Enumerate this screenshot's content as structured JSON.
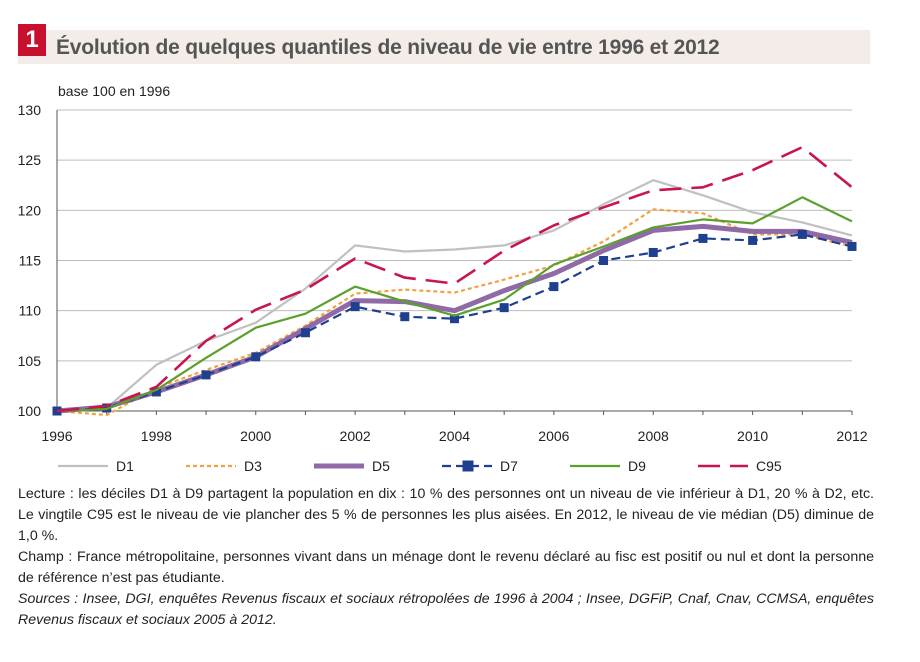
{
  "figure": {
    "number": "1",
    "title": "Évolution de quelques quantiles de niveau de vie entre 1996 et 2012",
    "notes": {
      "lecture": "Lecture : les déciles D1 à D9 partagent la population en dix : 10 % des personnes ont un niveau de vie inférieur à D1, 20 % à D2, etc. Le vingtile C95 est le niveau de vie plancher des 5 % de personnes les plus aisées. En 2012, le niveau de vie médian (D5) diminue de 1,0 %.",
      "champ": "Champ : France métropolitaine, personnes vivant dans un ménage dont le revenu déclaré au fisc est positif ou nul et dont la personne de référence n’est pas étudiante.",
      "sources": "Sources : Insee, DGI, enquêtes Revenus fiscaux et sociaux rétropolées de 1996 à 2004 ; Insee, DGFiP, Cnaf, Cnav, CCMSA, enquêtes Revenus fiscaux et sociaux 2005 à 2012."
    }
  },
  "chart_data": {
    "type": "line",
    "ylabel": "base 100 en 1996",
    "xlabel": "",
    "ylim": [
      100,
      130
    ],
    "yticks": [
      100,
      105,
      110,
      115,
      120,
      125,
      130
    ],
    "xlim": [
      1996,
      2012
    ],
    "xticks": [
      1996,
      1998,
      2000,
      2002,
      2004,
      2006,
      2008,
      2010,
      2012
    ],
    "grid": "horizontal",
    "legend_position": "bottom",
    "x": [
      1996,
      1997,
      1998,
      1999,
      2000,
      2001,
      2002,
      2003,
      2004,
      2005,
      2006,
      2007,
      2008,
      2009,
      2010,
      2011,
      2012
    ],
    "series": [
      {
        "name": "D1",
        "color": "#c0c0c0",
        "style": "solid",
        "values": [
          100,
          100.3,
          104.6,
          107.0,
          108.8,
          112.2,
          116.5,
          115.9,
          116.1,
          116.5,
          118.0,
          120.6,
          123.0,
          121.5,
          119.8,
          118.8,
          117.5
        ]
      },
      {
        "name": "D3",
        "color": "#f2a041",
        "style": "dotted",
        "values": [
          100,
          99.6,
          102.3,
          104.1,
          105.8,
          108.5,
          111.7,
          112.1,
          111.8,
          113.1,
          114.5,
          116.9,
          120.1,
          119.7,
          117.6,
          117.6,
          116.4
        ]
      },
      {
        "name": "D5",
        "color": "#8f6aa6",
        "style": "thick",
        "values": [
          100,
          100.4,
          101.9,
          103.6,
          105.4,
          108.2,
          111.0,
          110.9,
          110.0,
          112.0,
          113.7,
          116.0,
          118.0,
          118.4,
          117.9,
          117.9,
          116.8
        ]
      },
      {
        "name": "D7",
        "color": "#1f3f8f",
        "style": "dash-square",
        "values": [
          100,
          100.3,
          101.9,
          103.6,
          105.4,
          107.8,
          110.4,
          109.4,
          109.2,
          110.3,
          112.4,
          115.0,
          115.8,
          117.2,
          117.0,
          117.6,
          116.4
        ]
      },
      {
        "name": "D9",
        "color": "#5aa02c",
        "style": "solid",
        "values": [
          100,
          100.2,
          102.1,
          105.3,
          108.3,
          109.7,
          112.4,
          110.9,
          109.5,
          111.1,
          114.6,
          116.4,
          118.3,
          119.1,
          118.7,
          121.3,
          118.9
        ]
      },
      {
        "name": "C95",
        "color": "#c8164d",
        "style": "longdash",
        "values": [
          100,
          100.5,
          102.4,
          107.0,
          110.1,
          112.1,
          115.2,
          113.3,
          112.7,
          116.0,
          118.5,
          120.3,
          122.0,
          122.3,
          124.0,
          126.3,
          122.3
        ]
      }
    ]
  }
}
